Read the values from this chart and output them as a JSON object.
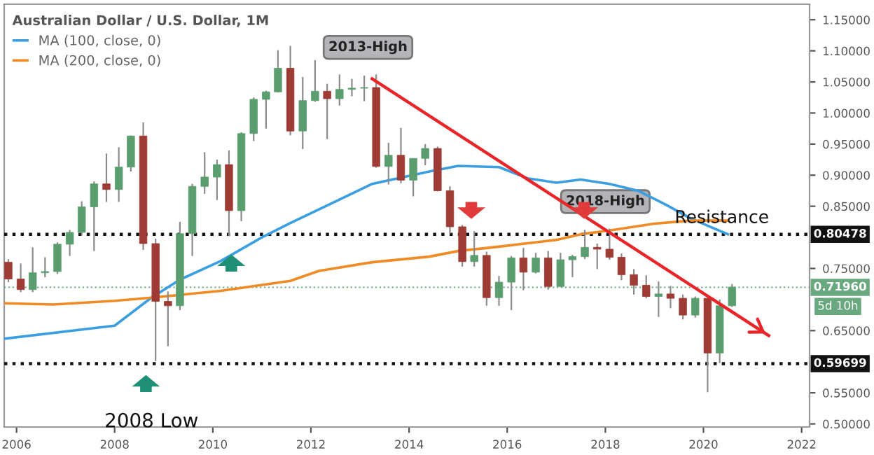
{
  "chart_data": {
    "type": "candlestick",
    "title": "Australian Dollar / U.S. Dollar, 1M",
    "x": [
      "2005-11",
      "2006-02",
      "2006-05",
      "2006-08",
      "2006-11",
      "2007-02",
      "2007-05",
      "2007-08",
      "2007-11",
      "2008-02",
      "2008-05",
      "2008-08",
      "2008-11",
      "2009-02",
      "2009-05",
      "2009-08",
      "2009-11",
      "2010-02",
      "2010-05",
      "2010-08",
      "2010-11",
      "2011-02",
      "2011-05",
      "2011-08",
      "2011-11",
      "2012-02",
      "2012-05",
      "2012-08",
      "2012-11",
      "2013-02",
      "2013-05",
      "2013-08",
      "2013-11",
      "2014-02",
      "2014-05",
      "2014-08",
      "2014-11",
      "2015-02",
      "2015-05",
      "2015-08",
      "2015-11",
      "2016-02",
      "2016-05",
      "2016-08",
      "2016-11",
      "2017-02",
      "2017-05",
      "2017-08",
      "2017-11",
      "2018-02",
      "2018-05",
      "2018-08",
      "2018-11",
      "2019-02",
      "2019-05",
      "2019-08",
      "2019-11",
      "2020-02",
      "2020-05",
      "2020-08"
    ],
    "ohlc": [
      [
        0.76,
        0.765,
        0.728,
        0.733
      ],
      [
        0.733,
        0.758,
        0.712,
        0.716
      ],
      [
        0.716,
        0.784,
        0.712,
        0.743
      ],
      [
        0.743,
        0.768,
        0.736,
        0.745
      ],
      [
        0.745,
        0.792,
        0.741,
        0.789
      ],
      [
        0.789,
        0.812,
        0.77,
        0.808
      ],
      [
        0.808,
        0.858,
        0.803,
        0.849
      ],
      [
        0.849,
        0.89,
        0.778,
        0.886
      ],
      [
        0.886,
        0.935,
        0.857,
        0.877
      ],
      [
        0.877,
        0.945,
        0.857,
        0.913
      ],
      [
        0.913,
        0.964,
        0.906,
        0.963
      ],
      [
        0.963,
        0.985,
        0.78,
        0.79
      ],
      [
        0.79,
        0.798,
        0.601,
        0.697
      ],
      [
        0.697,
        0.713,
        0.625,
        0.69
      ],
      [
        0.69,
        0.825,
        0.683,
        0.806
      ],
      [
        0.806,
        0.886,
        0.77,
        0.882
      ],
      [
        0.882,
        0.937,
        0.87,
        0.897
      ],
      [
        0.897,
        0.925,
        0.86,
        0.917
      ],
      [
        0.917,
        0.94,
        0.802,
        0.843
      ],
      [
        0.843,
        0.969,
        0.826,
        0.967
      ],
      [
        0.967,
        1.025,
        0.955,
        1.022
      ],
      [
        1.022,
        1.036,
        0.975,
        1.034
      ],
      [
        1.034,
        1.101,
        1.033,
        1.072
      ],
      [
        1.072,
        1.108,
        0.964,
        0.971
      ],
      [
        0.971,
        1.058,
        0.942,
        1.02
      ],
      [
        1.02,
        1.085,
        1.018,
        1.035
      ],
      [
        1.035,
        1.047,
        0.958,
        1.023
      ],
      [
        1.023,
        1.062,
        1.012,
        1.038
      ],
      [
        1.038,
        1.055,
        1.027,
        1.04
      ],
      [
        1.04,
        1.06,
        1.019,
        1.041
      ],
      [
        1.041,
        1.062,
        0.912,
        0.914
      ],
      [
        0.914,
        0.952,
        0.885,
        0.932
      ],
      [
        0.932,
        0.976,
        0.887,
        0.892
      ],
      [
        0.892,
        0.927,
        0.866,
        0.927
      ],
      [
        0.927,
        0.95,
        0.916,
        0.943
      ],
      [
        0.943,
        0.946,
        0.874,
        0.875
      ],
      [
        0.875,
        0.882,
        0.806,
        0.817
      ],
      [
        0.817,
        0.82,
        0.753,
        0.761
      ],
      [
        0.761,
        0.81,
        0.753,
        0.771
      ],
      [
        0.771,
        0.777,
        0.69,
        0.703
      ],
      [
        0.703,
        0.738,
        0.69,
        0.728
      ],
      [
        0.728,
        0.77,
        0.683,
        0.767
      ],
      [
        0.767,
        0.783,
        0.715,
        0.744
      ],
      [
        0.744,
        0.775,
        0.742,
        0.767
      ],
      [
        0.767,
        0.778,
        0.716,
        0.721
      ],
      [
        0.721,
        0.775,
        0.72,
        0.764
      ],
      [
        0.764,
        0.772,
        0.736,
        0.769
      ],
      [
        0.769,
        0.812,
        0.765,
        0.784
      ],
      [
        0.784,
        0.79,
        0.749,
        0.781
      ],
      [
        0.781,
        0.814,
        0.764,
        0.768
      ],
      [
        0.768,
        0.774,
        0.731,
        0.74
      ],
      [
        0.74,
        0.749,
        0.708,
        0.723
      ],
      [
        0.723,
        0.739,
        0.702,
        0.705
      ],
      [
        0.705,
        0.729,
        0.672,
        0.709
      ],
      [
        0.709,
        0.722,
        0.686,
        0.702
      ],
      [
        0.702,
        0.708,
        0.668,
        0.675
      ],
      [
        0.675,
        0.705,
        0.671,
        0.702
      ],
      [
        0.702,
        0.703,
        0.551,
        0.614
      ],
      [
        0.614,
        0.7,
        0.598,
        0.69
      ],
      [
        0.69,
        0.725,
        0.688,
        0.72
      ]
    ],
    "colors": [
      "#9e3b35",
      "#9e3b35",
      "#5a9e6f",
      "#5a9e6f",
      "#5a9e6f",
      "#5a9e6f",
      "#5a9e6f",
      "#5a9e6f",
      "#9e3b35",
      "#5a9e6f",
      "#5a9e6f",
      "#9e3b35",
      "#9e3b35",
      "#9e3b35",
      "#5a9e6f",
      "#5a9e6f",
      "#5a9e6f",
      "#5a9e6f",
      "#9e3b35",
      "#5a9e6f",
      "#5a9e6f",
      "#5a9e6f",
      "#5a9e6f",
      "#9e3b35",
      "#5a9e6f",
      "#5a9e6f",
      "#9e3b35",
      "#5a9e6f",
      "#5a9e6f",
      "#5a9e6f",
      "#9e3b35",
      "#5a9e6f",
      "#9e3b35",
      "#5a9e6f",
      "#5a9e6f",
      "#9e3b35",
      "#9e3b35",
      "#9e3b35",
      "#5a9e6f",
      "#9e3b35",
      "#5a9e6f",
      "#5a9e6f",
      "#9e3b35",
      "#5a9e6f",
      "#9e3b35",
      "#5a9e6f",
      "#5a9e6f",
      "#5a9e6f",
      "#9e3b35",
      "#9e3b35",
      "#9e3b35",
      "#9e3b35",
      "#9e3b35",
      "#5a9e6f",
      "#9e3b35",
      "#9e3b35",
      "#5a9e6f",
      "#9e3b35",
      "#5a9e6f",
      "#5a9e6f"
    ],
    "series": [
      {
        "name": "MA (100, close, 0)",
        "type": "line",
        "color": "#3b9ee0",
        "x": [
          "2005-10",
          "2008-01",
          "2008-10",
          "2009-05",
          "2010-03",
          "2011-01",
          "2011-08",
          "2012-03",
          "2013-04",
          "2014-06",
          "2015-01",
          "2015-11",
          "2016-06",
          "2017-01",
          "2017-07",
          "2018-02",
          "2018-09",
          "2019-04",
          "2019-10",
          "2020-07"
        ],
        "values": [
          0.637,
          0.658,
          0.703,
          0.732,
          0.762,
          0.8,
          0.823,
          0.845,
          0.886,
          0.906,
          0.915,
          0.913,
          0.895,
          0.888,
          0.893,
          0.886,
          0.875,
          0.852,
          0.83,
          0.805
        ]
      },
      {
        "name": "MA (200, close, 0)",
        "type": "line",
        "color": "#f08a24",
        "x": [
          "2005-10",
          "2006-10",
          "2008-01",
          "2008-10",
          "2010-03",
          "2011-08",
          "2012-03",
          "2013-04",
          "2014-06",
          "2015-01",
          "2015-11",
          "2017-01",
          "2017-07",
          "2018-02",
          "2019-01",
          "2019-10",
          "2020-07"
        ],
        "values": [
          0.694,
          0.692,
          0.698,
          0.703,
          0.714,
          0.73,
          0.746,
          0.76,
          0.769,
          0.778,
          0.785,
          0.796,
          0.805,
          0.811,
          0.822,
          0.827,
          0.827
        ]
      },
      {
        "type": "line",
        "color": "#e8262a",
        "x": [
          "2013-04",
          "2021-05"
        ],
        "values": [
          1.055,
          0.642
        ]
      }
    ],
    "xlim": [
      "2005-10",
      "2022-03"
    ],
    "xticks": [
      {
        "value": "2006",
        "label": "2006"
      },
      {
        "value": "2008",
        "label": "2008"
      },
      {
        "value": "2010",
        "label": "2010"
      },
      {
        "value": "2012",
        "label": "2012"
      },
      {
        "value": "2014",
        "label": "2014"
      },
      {
        "value": "2016",
        "label": "2016"
      },
      {
        "value": "2018",
        "label": "2018"
      },
      {
        "value": "2020",
        "label": "2020"
      },
      {
        "value": "2022",
        "label": "2022"
      }
    ],
    "ylim": [
      0.495,
      1.175
    ],
    "yticks": [
      {
        "value": 0.5,
        "label": "0.50000"
      },
      {
        "value": 0.55,
        "label": "0.55000"
      },
      {
        "value": 0.65,
        "label": "0.65000"
      },
      {
        "value": 0.75,
        "label": "0.75000"
      },
      {
        "value": 0.85,
        "label": "0.85000"
      },
      {
        "value": 0.9,
        "label": "0.90000"
      },
      {
        "value": 0.95,
        "label": "0.95000"
      },
      {
        "value": 1.0,
        "label": "1.00000"
      },
      {
        "value": 1.05,
        "label": "1.05000"
      },
      {
        "value": 1.1,
        "label": "1.10000"
      },
      {
        "value": 1.15,
        "label": "1.15000"
      }
    ],
    "ref_lines": [
      {
        "axis": "y",
        "value": 0.80478,
        "label": "0.80478",
        "color": "#111111",
        "line_style": "dotted"
      },
      {
        "axis": "y",
        "value": 0.59699,
        "label": "0.59699",
        "color": "#111111",
        "line_style": "dotted"
      },
      {
        "axis": "y",
        "value": 0.7196,
        "label": "0.71960",
        "color": "#6aa980",
        "line_style": "dotted"
      }
    ],
    "annotations": [
      {
        "text": "2013-High",
        "x": "2013-03",
        "y": 1.062
      },
      {
        "text": "2018-High",
        "x": "2018-01",
        "y": 0.814
      },
      {
        "text": "2008 Low",
        "x": "2008-10",
        "y": 0.59699
      },
      {
        "text": "Resistance",
        "x": "2019-06",
        "y": 0.80478
      },
      "5d 10h"
    ],
    "legend": "top left",
    "grid": false
  }
}
